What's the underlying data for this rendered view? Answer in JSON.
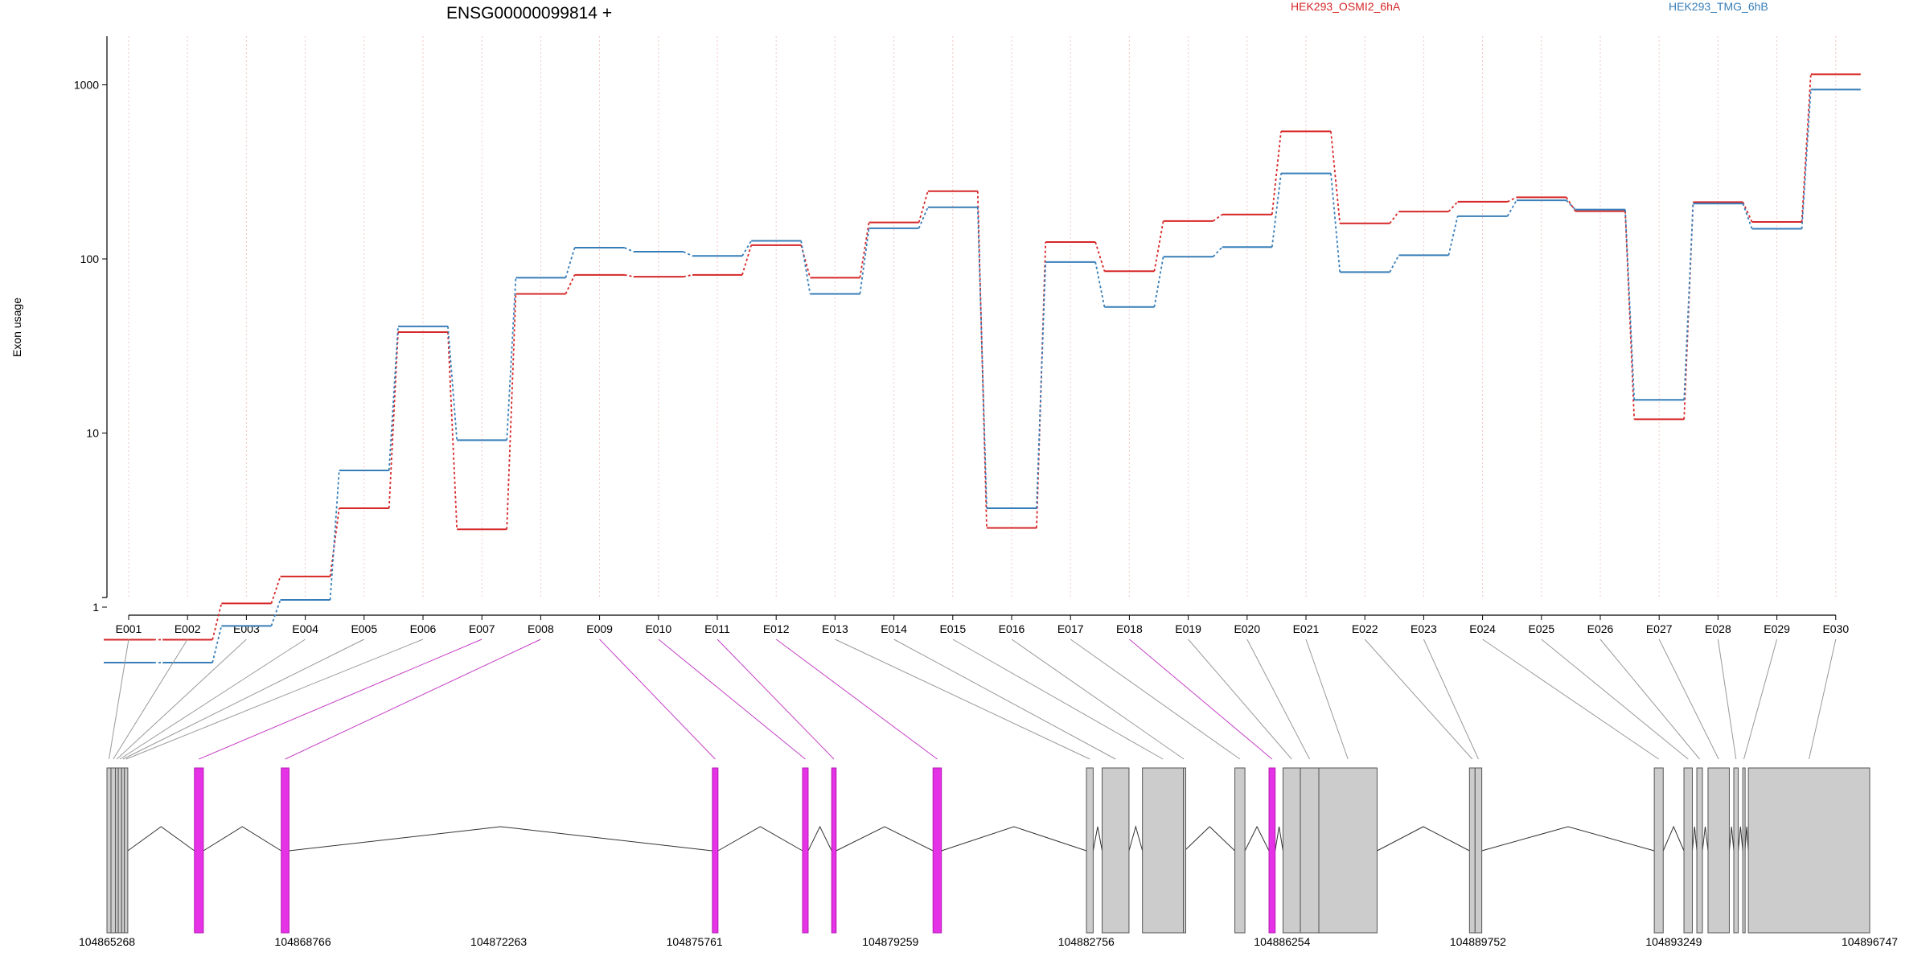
{
  "chart_data": {
    "type": "line",
    "title": "ENSG00000099814 +",
    "ylabel": "Exon usage",
    "xlabel": "",
    "y_scale": "log",
    "ylim": [
      0.4,
      1400
    ],
    "y_ticks": [
      1,
      10,
      100,
      1000
    ],
    "y_tick_labels": [
      "1",
      "10",
      "100",
      "1000"
    ],
    "grid": "vertical dotted",
    "legend_placement": "top-right",
    "categories": [
      "E001",
      "E002",
      "E003",
      "E004",
      "E005",
      "E006",
      "E007",
      "E008",
      "E009",
      "E010",
      "E011",
      "E012",
      "E013",
      "E014",
      "E015",
      "E016",
      "E017",
      "E018",
      "E019",
      "E020",
      "E021",
      "E022",
      "E023",
      "E024",
      "E025",
      "E026",
      "E027",
      "E028",
      "E029",
      "E030"
    ],
    "series": [
      {
        "name": "HEK293_OSMI2_6hA",
        "color": "#d62728",
        "values": [
          0.65,
          0.65,
          1.05,
          1.5,
          3.7,
          38,
          2.8,
          63,
          81,
          79,
          81,
          120,
          78,
          162,
          245,
          2.85,
          125,
          85,
          165,
          180,
          540,
          160,
          187,
          213,
          226,
          188,
          12,
          212,
          163,
          1150
        ]
      },
      {
        "name": "HEK293_TMG_6hB",
        "color": "#377eb8",
        "values": [
          0.48,
          0.48,
          0.78,
          1.1,
          6.1,
          41,
          9.1,
          78,
          116,
          110,
          104,
          127,
          63,
          150,
          198,
          3.7,
          96,
          53,
          103,
          117,
          310,
          84,
          105,
          176,
          217,
          192,
          15.5,
          208,
          149,
          940
        ]
      }
    ],
    "gene_model": {
      "axis_start": 104865268,
      "axis_end": 104896747,
      "coordinate_tick_labels": [
        "104865268",
        "104868766",
        "104872263",
        "104875761",
        "104879259",
        "104882756",
        "104886254",
        "104889752",
        "104893249",
        "104896747"
      ],
      "highlight_color": "#e632e6",
      "exon_color": "#cccccc",
      "exons": [
        {
          "id": "E001",
          "start": 104865268,
          "end": 104865340,
          "highlight": false
        },
        {
          "id": "E002",
          "start": 104865340,
          "end": 104865420,
          "highlight": false
        },
        {
          "id": "E003",
          "start": 104865420,
          "end": 104865470,
          "highlight": false
        },
        {
          "id": "E004",
          "start": 104865470,
          "end": 104865530,
          "highlight": false
        },
        {
          "id": "E005",
          "start": 104865530,
          "end": 104865580,
          "highlight": false
        },
        {
          "id": "E006",
          "start": 104865580,
          "end": 104865640,
          "highlight": false
        },
        {
          "id": "E007",
          "start": 104866830,
          "end": 104866990,
          "highlight": true
        },
        {
          "id": "E008",
          "start": 104868380,
          "end": 104868520,
          "highlight": true
        },
        {
          "id": "E009",
          "start": 104876080,
          "end": 104876180,
          "highlight": true
        },
        {
          "id": "E010",
          "start": 104877690,
          "end": 104877790,
          "highlight": true
        },
        {
          "id": "E011",
          "start": 104878210,
          "end": 104878290,
          "highlight": true
        },
        {
          "id": "E012",
          "start": 104880020,
          "end": 104880170,
          "highlight": true
        },
        {
          "id": "E013",
          "start": 104882760,
          "end": 104882880,
          "highlight": false
        },
        {
          "id": "E014",
          "start": 104883040,
          "end": 104883520,
          "highlight": false
        },
        {
          "id": "E015",
          "start": 104883760,
          "end": 104884490,
          "highlight": false
        },
        {
          "id": "E016",
          "start": 104884490,
          "end": 104884510,
          "highlight": false
        },
        {
          "id": "E017",
          "start": 104885410,
          "end": 104885590,
          "highlight": false
        },
        {
          "id": "E018",
          "start": 104886020,
          "end": 104886130,
          "highlight": true
        },
        {
          "id": "E019",
          "start": 104886270,
          "end": 104886580,
          "highlight": false
        },
        {
          "id": "E020",
          "start": 104886580,
          "end": 104886910,
          "highlight": false
        },
        {
          "id": "E021",
          "start": 104886910,
          "end": 104887950,
          "highlight": false
        },
        {
          "id": "E022",
          "start": 104889600,
          "end": 104889700,
          "highlight": false
        },
        {
          "id": "E023",
          "start": 104889700,
          "end": 104889820,
          "highlight": false
        },
        {
          "id": "E024",
          "start": 104892900,
          "end": 104893060,
          "highlight": false
        },
        {
          "id": "E025",
          "start": 104893430,
          "end": 104893580,
          "highlight": false
        },
        {
          "id": "E026",
          "start": 104893660,
          "end": 104893760,
          "highlight": false
        },
        {
          "id": "E027",
          "start": 104893860,
          "end": 104894240,
          "highlight": false
        },
        {
          "id": "E028",
          "start": 104894320,
          "end": 104894400,
          "highlight": false
        },
        {
          "id": "E029",
          "start": 104894480,
          "end": 104894520,
          "highlight": false
        },
        {
          "id": "E030",
          "start": 104894580,
          "end": 104896747,
          "highlight": false
        }
      ]
    }
  }
}
